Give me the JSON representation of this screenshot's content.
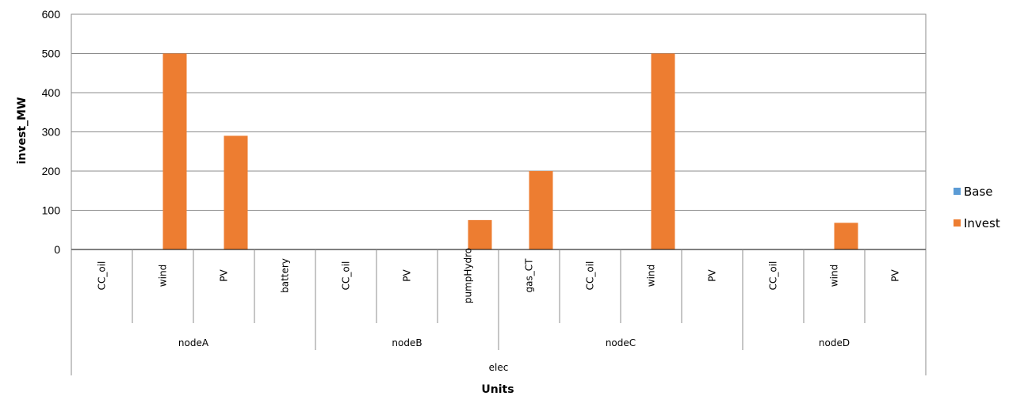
{
  "chart_data": {
    "type": "bar",
    "ylabel": "invest_MW",
    "xlabel": "Units",
    "ylim": [
      0,
      600
    ],
    "yticks": [
      0,
      100,
      200,
      300,
      400,
      500,
      600
    ],
    "grid": true,
    "legend_position": "right",
    "categories": [
      "CC_oil",
      "wind",
      "PV",
      "battery",
      "CC_oil",
      "PV",
      "pumpHydro",
      "gas_CT",
      "CC_oil",
      "wind",
      "PV",
      "CC_oil",
      "wind",
      "PV"
    ],
    "groups": [
      {
        "name": "nodeA",
        "count": 4
      },
      {
        "name": "nodeB",
        "count": 3
      },
      {
        "name": "nodeC",
        "count": 4
      },
      {
        "name": "nodeD",
        "count": 3
      }
    ],
    "supergroup": "elec",
    "series": [
      {
        "name": "Base",
        "color": "#5b9bd5",
        "values": [
          0,
          0,
          0,
          0,
          0,
          0,
          0,
          0,
          0,
          0,
          0,
          0,
          0,
          0
        ]
      },
      {
        "name": "Invest",
        "color": "#ed7d31",
        "values": [
          0,
          500,
          290,
          0,
          0,
          0,
          75,
          200,
          0,
          500,
          0,
          0,
          68,
          0
        ]
      }
    ]
  }
}
